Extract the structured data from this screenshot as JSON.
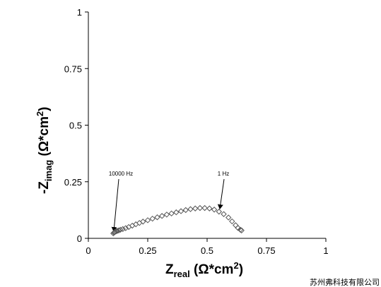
{
  "chart_data": {
    "type": "scatter",
    "x_label": [
      "Z",
      "real",
      " (Ω*cm",
      "2",
      ")"
    ],
    "y_label": [
      "-Z",
      "imag",
      " (Ω*cm",
      "2",
      ")"
    ],
    "annotations": [
      "10000 Hz",
      "1 Hz"
    ],
    "footer": "苏州弗科技有限公司",
    "xlim": [
      0,
      1
    ],
    "ylim": [
      0,
      1
    ],
    "xticks": [
      0,
      0.25,
      0.5,
      0.75,
      1
    ],
    "yticks": [
      0,
      0.25,
      0.5,
      0.75,
      1
    ],
    "grid": false,
    "color": "#555555",
    "x": [
      0.105,
      0.108,
      0.11,
      0.113,
      0.117,
      0.122,
      0.128,
      0.135,
      0.145,
      0.157,
      0.17,
      0.185,
      0.2,
      0.215,
      0.23,
      0.25,
      0.27,
      0.29,
      0.31,
      0.33,
      0.35,
      0.37,
      0.39,
      0.41,
      0.43,
      0.45,
      0.47,
      0.49,
      0.51,
      0.53,
      0.55,
      0.57,
      0.59,
      0.605,
      0.62,
      0.63,
      0.64,
      0.645
    ],
    "values": [
      0.022,
      0.025,
      0.027,
      0.029,
      0.031,
      0.033,
      0.035,
      0.038,
      0.041,
      0.045,
      0.05,
      0.056,
      0.062,
      0.068,
      0.074,
      0.08,
      0.087,
      0.093,
      0.099,
      0.105,
      0.11,
      0.115,
      0.12,
      0.125,
      0.129,
      0.132,
      0.134,
      0.134,
      0.132,
      0.127,
      0.118,
      0.107,
      0.092,
      0.075,
      0.058,
      0.046,
      0.038,
      0.035
    ]
  }
}
